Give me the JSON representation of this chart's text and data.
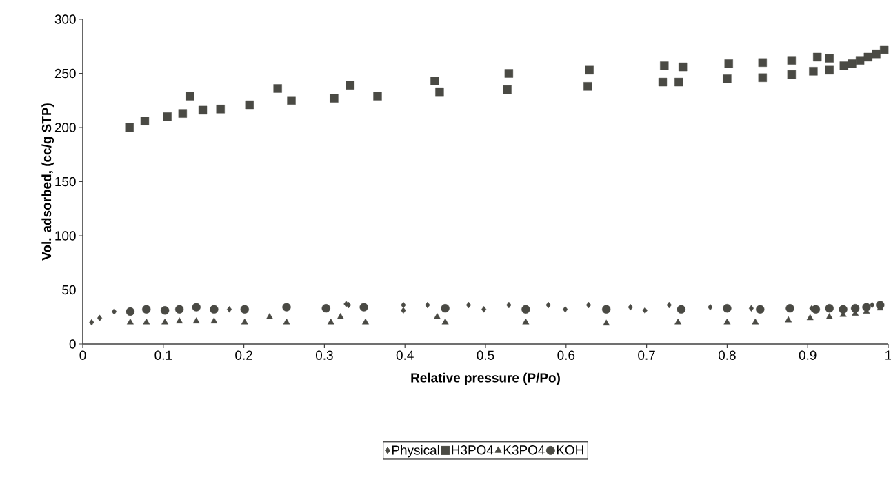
{
  "chart_data": {
    "type": "scatter",
    "xlabel": "Relative pressure (P/Po)",
    "ylabel": "Vol. adsorbed, (cc/g STP)",
    "xlim": [
      0,
      1
    ],
    "ylim": [
      0,
      300
    ],
    "xticks": [
      0,
      0.1,
      0.2,
      0.3,
      0.4,
      0.5,
      0.6,
      0.7,
      0.8,
      0.9,
      1
    ],
    "yticks": [
      0,
      50,
      100,
      150,
      200,
      250,
      300
    ],
    "grid": false,
    "legend": "bottom",
    "series": [
      {
        "name": "Physical",
        "color": "#4a4a44",
        "marker": "diamond",
        "x": [
          0.011,
          0.021,
          0.039,
          0.182,
          0.327,
          0.33,
          0.398,
          0.398,
          0.428,
          0.479,
          0.498,
          0.529,
          0.578,
          0.599,
          0.628,
          0.68,
          0.698,
          0.728,
          0.779,
          0.83,
          0.905,
          0.93,
          0.96,
          0.98
        ],
        "values": [
          20,
          24,
          30,
          32,
          37,
          36,
          36,
          31,
          36,
          36,
          32,
          36,
          36,
          32,
          36,
          34,
          31,
          36,
          34,
          33,
          33,
          null,
          null,
          36
        ]
      },
      {
        "name": "H3PO4",
        "color": "#4a4a44",
        "marker": "square",
        "x": [
          0.058,
          0.077,
          0.105,
          0.124,
          0.133,
          0.149,
          0.171,
          0.207,
          0.242,
          0.259,
          0.312,
          0.332,
          0.366,
          0.437,
          0.443,
          0.529,
          0.527,
          0.629,
          0.627,
          0.722,
          0.72,
          0.745,
          0.74,
          0.802,
          0.8,
          0.844,
          0.844,
          0.88,
          0.88,
          0.912,
          0.907,
          0.927,
          0.927,
          0.945,
          0.955,
          0.965,
          0.975,
          0.985,
          0.995
        ],
        "values": [
          200,
          206,
          210,
          213,
          229,
          216,
          217,
          221,
          236,
          225,
          227,
          239,
          229,
          243,
          233,
          250,
          235,
          253,
          238,
          257,
          242,
          256,
          242,
          259,
          245,
          260,
          246,
          262,
          249,
          265,
          252,
          264,
          253,
          257,
          259,
          262,
          265,
          268,
          272
        ]
      },
      {
        "name": "K3PO4",
        "color": "#4a4a44",
        "marker": "triangle",
        "x": [
          0.059,
          0.079,
          0.102,
          0.12,
          0.141,
          0.163,
          0.201,
          0.232,
          0.253,
          0.308,
          0.32,
          0.351,
          0.44,
          0.45,
          0.55,
          0.65,
          0.739,
          0.8,
          0.835,
          0.876,
          0.903,
          0.927,
          0.944,
          0.959,
          0.973,
          0.99
        ],
        "values": [
          20,
          20,
          20,
          21,
          21,
          21,
          20,
          25,
          20,
          20,
          25,
          20,
          25,
          20,
          20,
          19,
          20,
          20,
          20,
          22,
          24,
          25,
          27,
          28,
          30,
          33
        ]
      },
      {
        "name": "KOH",
        "color": "#4a4a44",
        "marker": "circle",
        "x": [
          0.059,
          0.079,
          0.102,
          0.12,
          0.141,
          0.163,
          0.201,
          0.253,
          0.302,
          0.349,
          0.45,
          0.55,
          0.65,
          0.743,
          0.8,
          0.841,
          0.878,
          0.91,
          0.927,
          0.944,
          0.959,
          0.973,
          0.99
        ],
        "values": [
          30,
          32,
          31,
          32,
          34,
          32,
          32,
          34,
          33,
          34,
          33,
          32,
          32,
          32,
          33,
          32,
          33,
          32,
          33,
          32,
          33,
          34,
          36
        ]
      }
    ]
  }
}
